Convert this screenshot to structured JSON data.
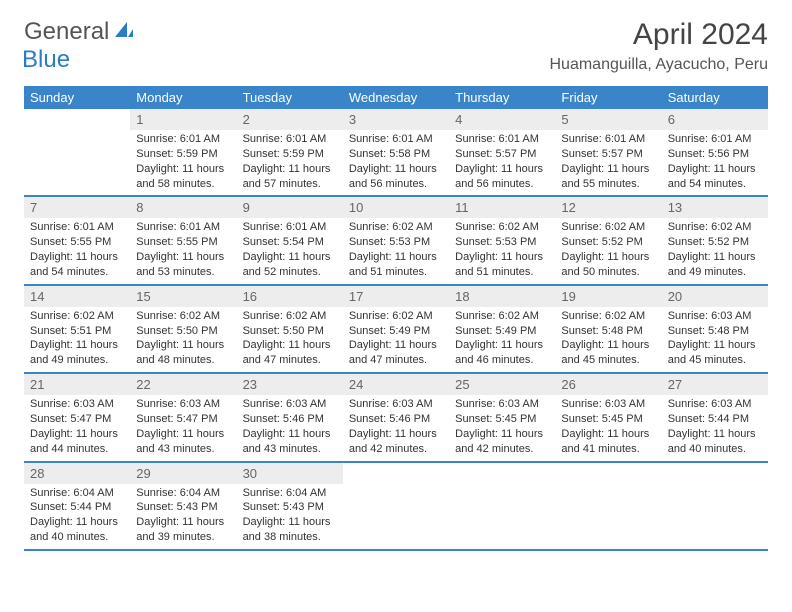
{
  "logo": {
    "general": "General",
    "blue": "Blue"
  },
  "title": "April 2024",
  "location": "Huamanguilla, Ayacucho, Peru",
  "colors": {
    "header_bar": "#3a85c9",
    "daynum_bg": "#ededed",
    "text_dark": "#333333",
    "text_mid": "#555555",
    "logo_blue": "#2b7cc4",
    "background": "#ffffff"
  },
  "typography": {
    "title_fontsize": 30,
    "location_fontsize": 16,
    "weekday_fontsize": 13,
    "daynum_fontsize": 13,
    "dayinfo_fontsize": 11
  },
  "weekdays": [
    "Sunday",
    "Monday",
    "Tuesday",
    "Wednesday",
    "Thursday",
    "Friday",
    "Saturday"
  ],
  "weeks": [
    [
      null,
      {
        "n": "1",
        "sunrise": "6:01 AM",
        "sunset": "5:59 PM",
        "dl": "11 hours and 58 minutes."
      },
      {
        "n": "2",
        "sunrise": "6:01 AM",
        "sunset": "5:59 PM",
        "dl": "11 hours and 57 minutes."
      },
      {
        "n": "3",
        "sunrise": "6:01 AM",
        "sunset": "5:58 PM",
        "dl": "11 hours and 56 minutes."
      },
      {
        "n": "4",
        "sunrise": "6:01 AM",
        "sunset": "5:57 PM",
        "dl": "11 hours and 56 minutes."
      },
      {
        "n": "5",
        "sunrise": "6:01 AM",
        "sunset": "5:57 PM",
        "dl": "11 hours and 55 minutes."
      },
      {
        "n": "6",
        "sunrise": "6:01 AM",
        "sunset": "5:56 PM",
        "dl": "11 hours and 54 minutes."
      }
    ],
    [
      {
        "n": "7",
        "sunrise": "6:01 AM",
        "sunset": "5:55 PM",
        "dl": "11 hours and 54 minutes."
      },
      {
        "n": "8",
        "sunrise": "6:01 AM",
        "sunset": "5:55 PM",
        "dl": "11 hours and 53 minutes."
      },
      {
        "n": "9",
        "sunrise": "6:01 AM",
        "sunset": "5:54 PM",
        "dl": "11 hours and 52 minutes."
      },
      {
        "n": "10",
        "sunrise": "6:02 AM",
        "sunset": "5:53 PM",
        "dl": "11 hours and 51 minutes."
      },
      {
        "n": "11",
        "sunrise": "6:02 AM",
        "sunset": "5:53 PM",
        "dl": "11 hours and 51 minutes."
      },
      {
        "n": "12",
        "sunrise": "6:02 AM",
        "sunset": "5:52 PM",
        "dl": "11 hours and 50 minutes."
      },
      {
        "n": "13",
        "sunrise": "6:02 AM",
        "sunset": "5:52 PM",
        "dl": "11 hours and 49 minutes."
      }
    ],
    [
      {
        "n": "14",
        "sunrise": "6:02 AM",
        "sunset": "5:51 PM",
        "dl": "11 hours and 49 minutes."
      },
      {
        "n": "15",
        "sunrise": "6:02 AM",
        "sunset": "5:50 PM",
        "dl": "11 hours and 48 minutes."
      },
      {
        "n": "16",
        "sunrise": "6:02 AM",
        "sunset": "5:50 PM",
        "dl": "11 hours and 47 minutes."
      },
      {
        "n": "17",
        "sunrise": "6:02 AM",
        "sunset": "5:49 PM",
        "dl": "11 hours and 47 minutes."
      },
      {
        "n": "18",
        "sunrise": "6:02 AM",
        "sunset": "5:49 PM",
        "dl": "11 hours and 46 minutes."
      },
      {
        "n": "19",
        "sunrise": "6:02 AM",
        "sunset": "5:48 PM",
        "dl": "11 hours and 45 minutes."
      },
      {
        "n": "20",
        "sunrise": "6:03 AM",
        "sunset": "5:48 PM",
        "dl": "11 hours and 45 minutes."
      }
    ],
    [
      {
        "n": "21",
        "sunrise": "6:03 AM",
        "sunset": "5:47 PM",
        "dl": "11 hours and 44 minutes."
      },
      {
        "n": "22",
        "sunrise": "6:03 AM",
        "sunset": "5:47 PM",
        "dl": "11 hours and 43 minutes."
      },
      {
        "n": "23",
        "sunrise": "6:03 AM",
        "sunset": "5:46 PM",
        "dl": "11 hours and 43 minutes."
      },
      {
        "n": "24",
        "sunrise": "6:03 AM",
        "sunset": "5:46 PM",
        "dl": "11 hours and 42 minutes."
      },
      {
        "n": "25",
        "sunrise": "6:03 AM",
        "sunset": "5:45 PM",
        "dl": "11 hours and 42 minutes."
      },
      {
        "n": "26",
        "sunrise": "6:03 AM",
        "sunset": "5:45 PM",
        "dl": "11 hours and 41 minutes."
      },
      {
        "n": "27",
        "sunrise": "6:03 AM",
        "sunset": "5:44 PM",
        "dl": "11 hours and 40 minutes."
      }
    ],
    [
      {
        "n": "28",
        "sunrise": "6:04 AM",
        "sunset": "5:44 PM",
        "dl": "11 hours and 40 minutes."
      },
      {
        "n": "29",
        "sunrise": "6:04 AM",
        "sunset": "5:43 PM",
        "dl": "11 hours and 39 minutes."
      },
      {
        "n": "30",
        "sunrise": "6:04 AM",
        "sunset": "5:43 PM",
        "dl": "11 hours and 38 minutes."
      },
      null,
      null,
      null,
      null
    ]
  ],
  "labels": {
    "sunrise": "Sunrise:",
    "sunset": "Sunset:",
    "daylight": "Daylight:"
  }
}
